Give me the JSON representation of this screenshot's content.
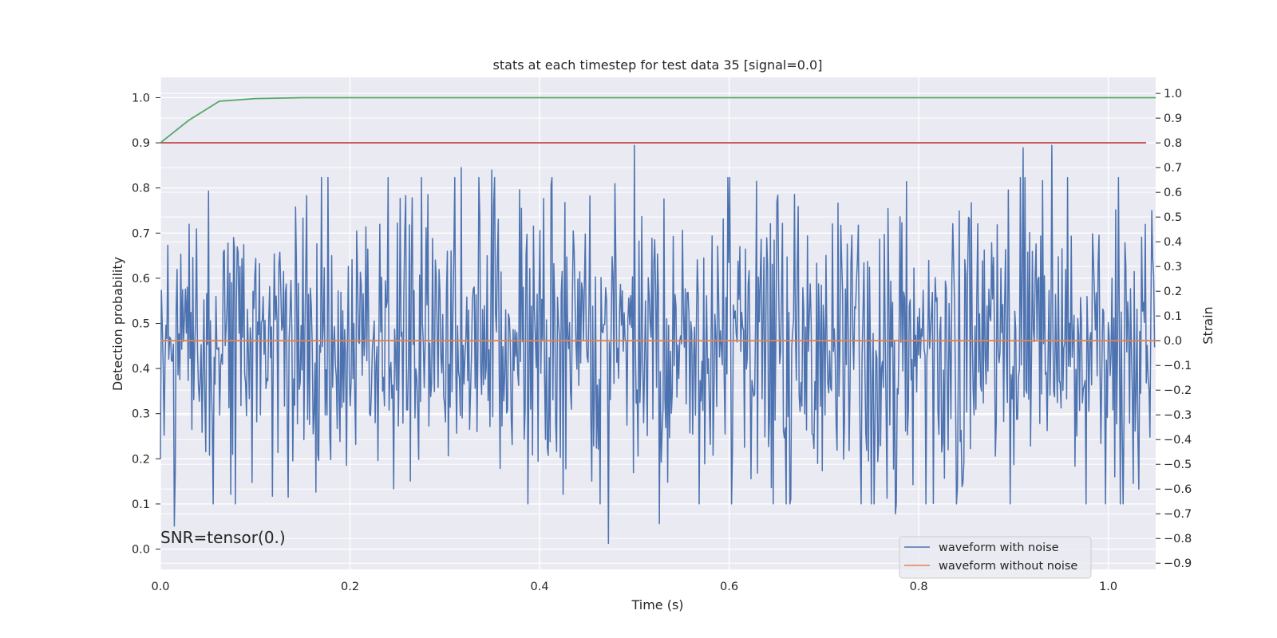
{
  "chart_data": {
    "type": "line",
    "title": "stats at each timestep for test data 35 [signal=0.0]",
    "xlabel": "Time (s)",
    "ylabel_left": "Detection probability",
    "ylabel_right": "Strain",
    "xlim": [
      0.0,
      1.05
    ],
    "ylim_left": [
      -0.045,
      1.045
    ],
    "ylim_right": [
      -0.925,
      1.065
    ],
    "xticks": [
      0.0,
      0.2,
      0.4,
      0.6,
      0.8,
      1.0
    ],
    "yticks_left": [
      0.0,
      0.1,
      0.2,
      0.3,
      0.4,
      0.5,
      0.6,
      0.7,
      0.8,
      0.9,
      1.0
    ],
    "yticks_right": [
      -0.9,
      -0.8,
      -0.7,
      -0.6,
      -0.5,
      -0.4,
      -0.3,
      -0.2,
      -0.1,
      0.0,
      0.1,
      0.2,
      0.3,
      0.4,
      0.5,
      0.6,
      0.7,
      0.8,
      0.9,
      1.0
    ],
    "annotation": "SNR=tensor(0.)",
    "grid": true,
    "legend_location": "lower-right",
    "colors": {
      "background": "#eaeaf2",
      "grid": "#ffffff",
      "noise": "#4c72b0",
      "clean": "#dd8452",
      "probability": "#55a868",
      "threshold": "#c44e52"
    },
    "series": [
      {
        "name": "waveform with noise",
        "axis": "right",
        "sample_rate": 1024,
        "duration": 1.05,
        "amplitude_std": 0.3,
        "extremes": [
          {
            "x": 0.015,
            "y": -0.75
          },
          {
            "x": 0.317,
            "y": 0.7
          },
          {
            "x": 0.35,
            "y": 0.69
          },
          {
            "x": 0.473,
            "y": -0.82
          },
          {
            "x": 0.5,
            "y": 0.79
          },
          {
            "x": 0.526,
            "y": -0.74
          },
          {
            "x": 0.91,
            "y": 0.78
          },
          {
            "x": 0.94,
            "y": 0.79
          },
          {
            "x": 0.775,
            "y": -0.7
          }
        ]
      },
      {
        "name": "waveform without noise",
        "axis": "right",
        "x": [
          0.0,
          1.05
        ],
        "y": [
          0.0,
          0.0
        ]
      },
      {
        "axis": "left",
        "x": [
          0.0,
          0.03,
          0.062,
          0.1,
          0.15,
          1.05
        ],
        "y": [
          0.9,
          0.95,
          0.992,
          0.998,
          1.0,
          1.0
        ]
      },
      {
        "axis": "left",
        "x": [
          0.0,
          1.04
        ],
        "y": [
          0.9,
          0.9
        ]
      }
    ]
  },
  "legend": {
    "items": [
      {
        "label": "waveform with noise"
      },
      {
        "label": "waveform without noise"
      }
    ]
  }
}
